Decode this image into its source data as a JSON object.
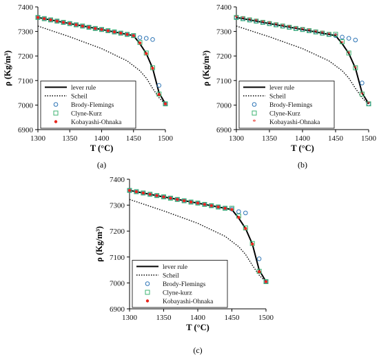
{
  "chart_data": [
    {
      "id": "a",
      "type": "line",
      "panel_label": "(a)",
      "xlabel": "T (°C)",
      "ylabel": "ρ (Kg/m³)",
      "xlim": [
        1300,
        1500
      ],
      "ylim": [
        6900,
        7400
      ],
      "xticks": [
        "1300",
        "1350",
        "1400",
        "1450",
        "1500"
      ],
      "yticks": [
        "6900",
        "7000",
        "7100",
        "7200",
        "7300",
        "7400"
      ],
      "grid": false,
      "legend_position": "bottom-left",
      "series": [
        {
          "name": "lever rule",
          "style": "solid",
          "x": [
            1300,
            1350,
            1400,
            1450,
            1460,
            1470,
            1480,
            1490,
            1500
          ],
          "y": [
            7357,
            7332,
            7308,
            7283,
            7250,
            7210,
            7150,
            7050,
            7005
          ]
        },
        {
          "name": "Scheil",
          "style": "dotted",
          "x": [
            1300,
            1350,
            1400,
            1440,
            1460,
            1470,
            1480,
            1490,
            1500
          ],
          "y": [
            7322,
            7278,
            7230,
            7180,
            7140,
            7110,
            7068,
            7030,
            7003
          ]
        },
        {
          "name": "Brody-Flemings",
          "marker": "circle",
          "x": [
            1300,
            1310,
            1320,
            1330,
            1340,
            1350,
            1360,
            1370,
            1380,
            1390,
            1400,
            1410,
            1420,
            1430,
            1440,
            1450,
            1460,
            1470,
            1480,
            1490,
            1500
          ],
          "y": [
            7357,
            7352,
            7347,
            7342,
            7337,
            7332,
            7327,
            7322,
            7317,
            7312,
            7308,
            7303,
            7298,
            7293,
            7288,
            7283,
            7275,
            7272,
            7267,
            7080,
            7005
          ]
        },
        {
          "name": "Clyne-Kurz",
          "marker": "square",
          "x": [
            1300,
            1310,
            1320,
            1330,
            1340,
            1350,
            1360,
            1370,
            1380,
            1390,
            1400,
            1410,
            1420,
            1430,
            1440,
            1450,
            1460,
            1470,
            1480,
            1490,
            1500
          ],
          "y": [
            7357,
            7352,
            7347,
            7342,
            7337,
            7332,
            7327,
            7322,
            7317,
            7312,
            7308,
            7303,
            7298,
            7293,
            7288,
            7283,
            7255,
            7212,
            7152,
            7045,
            7005
          ]
        },
        {
          "name": "Kobayashi-Ohnaka",
          "marker": "dot",
          "x": [
            1300,
            1310,
            1320,
            1330,
            1340,
            1350,
            1360,
            1370,
            1380,
            1390,
            1400,
            1410,
            1420,
            1430,
            1440,
            1450,
            1460,
            1470,
            1480,
            1490,
            1500
          ],
          "y": [
            7357,
            7352,
            7347,
            7342,
            7337,
            7332,
            7327,
            7322,
            7317,
            7312,
            7308,
            7303,
            7298,
            7293,
            7288,
            7283,
            7253,
            7210,
            7150,
            7043,
            7005
          ]
        }
      ]
    },
    {
      "id": "b",
      "type": "line",
      "panel_label": "(b)",
      "xlabel": "T (°C)",
      "ylabel": "ρ (Kg/m³)",
      "xlim": [
        1300,
        1500
      ],
      "ylim": [
        6900,
        7400
      ],
      "xticks": [
        "1300",
        "1350",
        "1400",
        "1450",
        "1500"
      ],
      "yticks": [
        "6900",
        "7000",
        "7100",
        "7200",
        "7300",
        "7400"
      ],
      "grid": false,
      "legend_position": "bottom-left",
      "series": [
        {
          "name": "lever rule",
          "style": "solid",
          "x": [
            1300,
            1350,
            1400,
            1450,
            1460,
            1470,
            1480,
            1490,
            1500
          ],
          "y": [
            7357,
            7332,
            7308,
            7283,
            7250,
            7210,
            7150,
            7050,
            7005
          ]
        },
        {
          "name": "Scheil",
          "style": "dotted",
          "x": [
            1300,
            1350,
            1400,
            1440,
            1460,
            1470,
            1480,
            1490,
            1500
          ],
          "y": [
            7322,
            7278,
            7230,
            7180,
            7140,
            7110,
            7068,
            7030,
            7003
          ]
        },
        {
          "name": "Brody-Flemings",
          "marker": "circle",
          "x": [
            1300,
            1310,
            1320,
            1330,
            1340,
            1350,
            1360,
            1370,
            1380,
            1390,
            1400,
            1410,
            1420,
            1430,
            1440,
            1450,
            1460,
            1470,
            1480,
            1490,
            1500
          ],
          "y": [
            7357,
            7352,
            7347,
            7342,
            7337,
            7332,
            7327,
            7322,
            7317,
            7312,
            7308,
            7303,
            7298,
            7293,
            7288,
            7283,
            7277,
            7272,
            7265,
            7090,
            7005
          ]
        },
        {
          "name": "Clyne-Kurz",
          "marker": "square",
          "x": [
            1300,
            1310,
            1320,
            1330,
            1340,
            1350,
            1360,
            1370,
            1380,
            1390,
            1400,
            1410,
            1420,
            1430,
            1440,
            1450,
            1460,
            1470,
            1480,
            1490,
            1500
          ],
          "y": [
            7357,
            7352,
            7347,
            7342,
            7337,
            7332,
            7327,
            7322,
            7317,
            7312,
            7308,
            7303,
            7298,
            7293,
            7288,
            7288,
            7258,
            7212,
            7152,
            7045,
            7005
          ]
        },
        {
          "name": "Kobayashi-Ohnaka",
          "marker": "star",
          "x": [
            1300,
            1310,
            1320,
            1330,
            1340,
            1350,
            1360,
            1370,
            1380,
            1390,
            1400,
            1410,
            1420,
            1430,
            1440,
            1450,
            1460,
            1470,
            1480,
            1490,
            1500
          ],
          "y": [
            7357,
            7352,
            7347,
            7342,
            7337,
            7332,
            7327,
            7322,
            7317,
            7312,
            7308,
            7303,
            7298,
            7293,
            7288,
            7283,
            7253,
            7210,
            7150,
            7043,
            7005
          ]
        }
      ]
    },
    {
      "id": "c",
      "type": "line",
      "panel_label": "(c)",
      "xlabel": "T (°C)",
      "ylabel": "ρ (Kg/m³)",
      "xlim": [
        1300,
        1500
      ],
      "ylim": [
        6900,
        7400
      ],
      "xticks": [
        "1300",
        "1350",
        "1400",
        "1450",
        "1500"
      ],
      "yticks": [
        "6900",
        "7000",
        "7100",
        "7200",
        "7300",
        "7400"
      ],
      "grid": false,
      "legend_position": "bottom-left",
      "series": [
        {
          "name": "lever rule",
          "style": "solid",
          "x": [
            1300,
            1350,
            1400,
            1450,
            1460,
            1470,
            1480,
            1490,
            1500
          ],
          "y": [
            7357,
            7332,
            7308,
            7283,
            7250,
            7210,
            7150,
            7050,
            7005
          ]
        },
        {
          "name": "Scheil",
          "style": "dotted",
          "x": [
            1300,
            1350,
            1400,
            1440,
            1460,
            1470,
            1480,
            1490,
            1500
          ],
          "y": [
            7322,
            7278,
            7230,
            7180,
            7140,
            7110,
            7068,
            7030,
            7003
          ]
        },
        {
          "name": "Brody-Flemings",
          "marker": "circle",
          "x": [
            1300,
            1310,
            1320,
            1330,
            1340,
            1350,
            1360,
            1370,
            1380,
            1390,
            1400,
            1410,
            1420,
            1430,
            1440,
            1450,
            1460,
            1470,
            1490,
            1500
          ],
          "y": [
            7357,
            7352,
            7347,
            7342,
            7337,
            7332,
            7327,
            7322,
            7317,
            7312,
            7308,
            7303,
            7298,
            7293,
            7288,
            7285,
            7275,
            7270,
            7093,
            7005
          ]
        },
        {
          "name": "Clyne-kurz",
          "marker": "square",
          "x": [
            1300,
            1310,
            1320,
            1330,
            1340,
            1350,
            1360,
            1370,
            1380,
            1390,
            1400,
            1410,
            1420,
            1430,
            1440,
            1450,
            1460,
            1470,
            1480,
            1490,
            1500
          ],
          "y": [
            7357,
            7352,
            7347,
            7342,
            7337,
            7332,
            7327,
            7322,
            7317,
            7312,
            7308,
            7303,
            7298,
            7293,
            7288,
            7288,
            7258,
            7212,
            7152,
            7045,
            7005
          ]
        },
        {
          "name": "Kobayashi-Ohnaka",
          "marker": "dot",
          "x": [
            1300,
            1310,
            1320,
            1330,
            1340,
            1350,
            1360,
            1370,
            1380,
            1390,
            1400,
            1410,
            1420,
            1430,
            1440,
            1450,
            1460,
            1470,
            1480,
            1490,
            1500
          ],
          "y": [
            7357,
            7352,
            7347,
            7342,
            7337,
            7332,
            7327,
            7322,
            7317,
            7312,
            7308,
            7303,
            7298,
            7293,
            7288,
            7283,
            7253,
            7210,
            7150,
            7043,
            7005
          ]
        }
      ]
    }
  ],
  "colors": {
    "line": "#000000",
    "circle_marker": "#2e75b6",
    "square_marker": "#3cb371",
    "dot_marker": "#e8261d"
  }
}
